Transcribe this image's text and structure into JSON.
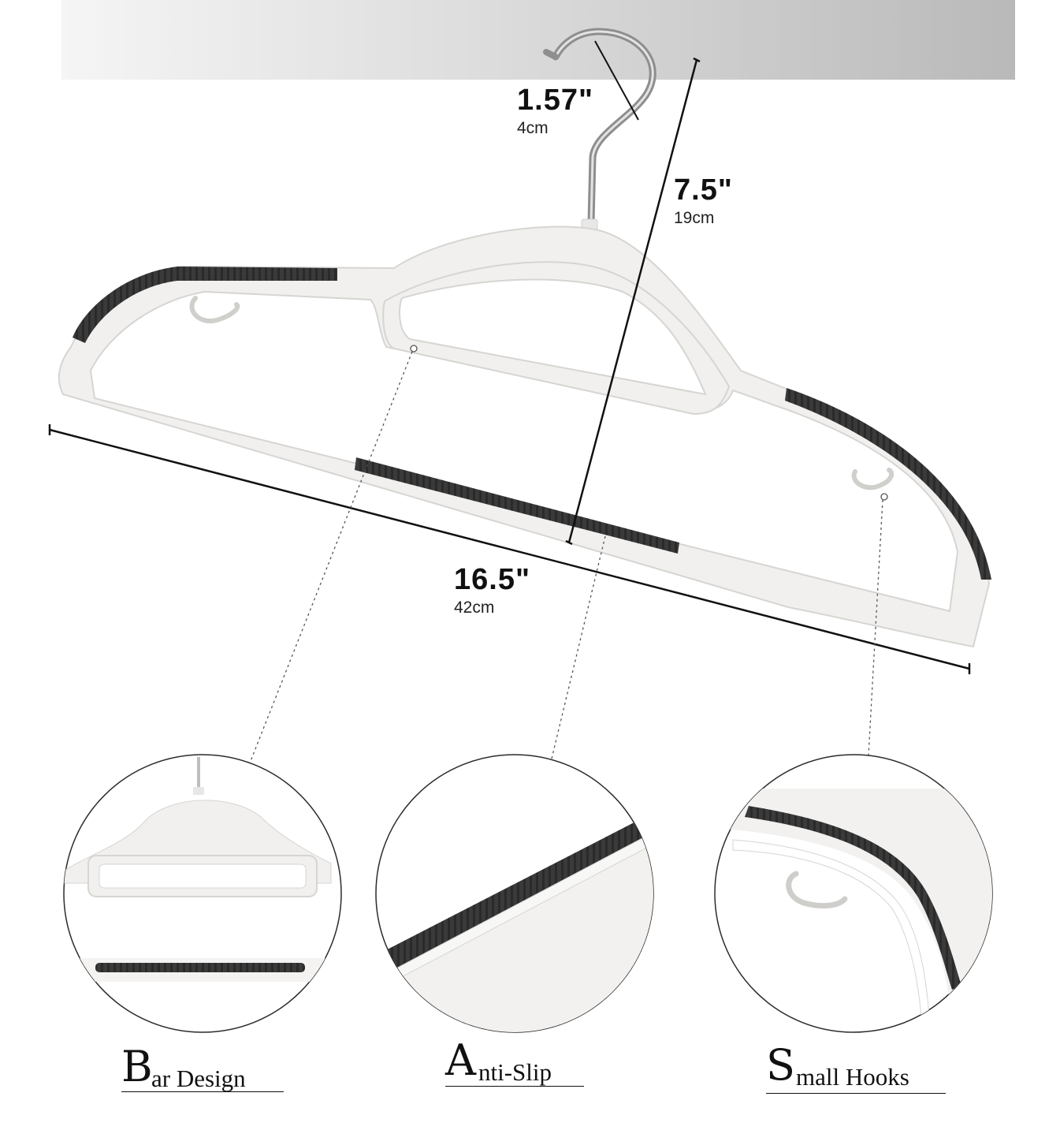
{
  "dimensions": {
    "hook": {
      "inches": "1.57\"",
      "cm": "4cm"
    },
    "height": {
      "inches": "7.5\"",
      "cm": "19cm"
    },
    "width": {
      "inches": "16.5\"",
      "cm": "42cm"
    }
  },
  "features": [
    {
      "initial": "B",
      "rest": "ar Design"
    },
    {
      "initial": "A",
      "rest": "nti-Slip"
    },
    {
      "initial": "S",
      "rest": "mall Hooks"
    }
  ],
  "colors": {
    "hanger_body": "#f1f0ee",
    "rubber_strip": "#3a3a3a",
    "hook_metal": "#8e8e8e",
    "top_band_dark": "#b9b9b9",
    "ink": "#111111"
  },
  "icons": [
    "hanger-illustration",
    "metal-hook-icon",
    "accessory-hook-icon"
  ]
}
